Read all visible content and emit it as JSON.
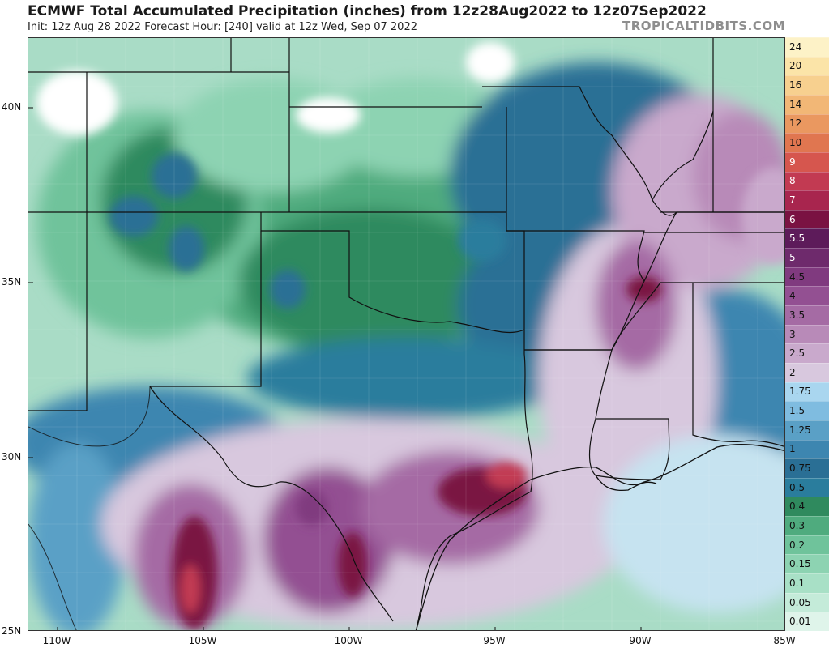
{
  "header": {
    "title": "ECMWF Total Accumulated Precipitation (inches) from 12z28Aug2022 to 12z07Sep2022",
    "subtitle": "Init: 12z Aug 28 2022   Forecast Hour: [240]   valid at 12z Wed, Sep 07 2022",
    "brand": "TROPICALTIDBITS.COM"
  },
  "axes": {
    "lat_labels": [
      "40N",
      "35N",
      "30N",
      "25N"
    ],
    "lon_labels": [
      "110W",
      "105W",
      "100W",
      "95W",
      "90W",
      "85W"
    ]
  },
  "colorbar": {
    "levels": [
      "0.01",
      "0.05",
      "0.1",
      "0.15",
      "0.2",
      "0.3",
      "0.4",
      "0.5",
      "0.75",
      "1",
      "1.25",
      "1.5",
      "1.75",
      "2",
      "2.5",
      "3",
      "3.5",
      "4",
      "4.5",
      "5",
      "5.5",
      "6",
      "7",
      "8",
      "9",
      "10",
      "12",
      "14",
      "16",
      "20",
      "24"
    ],
    "colors": [
      "#dff4ea",
      "#c4ebd9",
      "#a8e0c6",
      "#8dd3b2",
      "#6fc39b",
      "#4fab7e",
      "#2f8a5e",
      "#2a7d9d",
      "#2a6f95",
      "#3d86b0",
      "#5aa0c6",
      "#7fbce0",
      "#a9d6ef",
      "#d8c8de",
      "#c9a9cc",
      "#b88ab8",
      "#a56ba4",
      "#935092",
      "#803a7f",
      "#6e2a6c",
      "#5d1b5a",
      "#7a1242",
      "#a8254e",
      "#c23a52",
      "#d6564e",
      "#e07650",
      "#ea9860",
      "#f2b776",
      "#f7d08f",
      "#fbe4a8",
      "#fdf2c7"
    ]
  },
  "map_data": {
    "region": "Southern Plains and Gulf Coast, United States",
    "lat_range": [
      25,
      42
    ],
    "lon_range": [
      -111,
      -85
    ],
    "field": "Total Accumulated Precipitation (inches)",
    "notable_features": [
      "Heaviest totals (7-10 in) along the upper Texas coast near Houston",
      "6-8 in maxima in the Big Bend region of West Texas and northern Mexico",
      "3-5 in across Louisiana, Mississippi and Tennessee",
      "0.05-0.5 in across Colorado, Kansas, Oklahoma and New Mexico"
    ]
  }
}
